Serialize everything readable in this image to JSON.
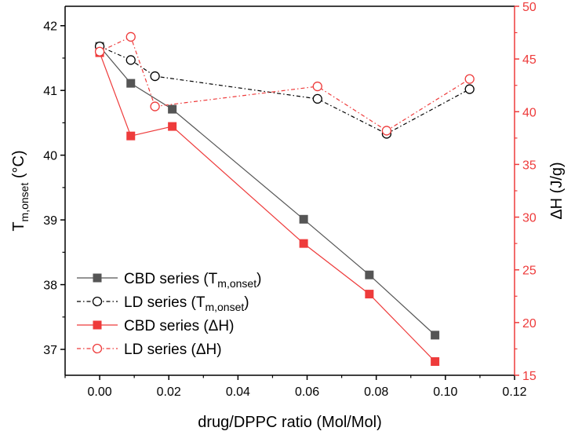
{
  "chart_data": {
    "type": "line",
    "xlabel": "drug/DPPC ratio (Mol/Mol)",
    "ylabel_left": {
      "main": "T",
      "sub": "m,onset",
      "unit": " (°C)"
    },
    "ylabel_right": "ΔH (J/g)",
    "xlim": [
      -0.01,
      0.12
    ],
    "ylim_left": [
      36.6,
      42.3
    ],
    "ylim_right": [
      15,
      50
    ],
    "x_ticks": [
      {
        "v": 0.0,
        "label": "0.00"
      },
      {
        "v": 0.02,
        "label": "0.02"
      },
      {
        "v": 0.04,
        "label": "0.04"
      },
      {
        "v": 0.06,
        "label": "0.06"
      },
      {
        "v": 0.08,
        "label": "0.08"
      },
      {
        "v": 0.1,
        "label": "0.10"
      },
      {
        "v": 0.12,
        "label": "0.12"
      }
    ],
    "y_left_ticks": [
      {
        "v": 37,
        "label": "37"
      },
      {
        "v": 38,
        "label": "38"
      },
      {
        "v": 39,
        "label": "39"
      },
      {
        "v": 40,
        "label": "40"
      },
      {
        "v": 41,
        "label": "41"
      },
      {
        "v": 42,
        "label": "42"
      }
    ],
    "y_right_ticks": [
      {
        "v": 15,
        "label": "15"
      },
      {
        "v": 20,
        "label": "20"
      },
      {
        "v": 25,
        "label": "25"
      },
      {
        "v": 30,
        "label": "30"
      },
      {
        "v": 35,
        "label": "35"
      },
      {
        "v": 40,
        "label": "40"
      },
      {
        "v": 45,
        "label": "45"
      },
      {
        "v": 50,
        "label": "50"
      }
    ],
    "series": [
      {
        "name": "CBD series (Tm,onset)",
        "legend_main": "CBD series (T",
        "legend_sub": "m,onset",
        "legend_end": ")",
        "axis": "left",
        "color": "#555555",
        "marker": "square",
        "dash": "solid",
        "x": [
          0.0,
          0.009,
          0.021,
          0.059,
          0.078,
          0.097
        ],
        "y": [
          41.68,
          41.11,
          40.71,
          39.01,
          38.15,
          37.22
        ]
      },
      {
        "name": "LD series (Tm,onset)",
        "legend_main": "LD series (T",
        "legend_sub": "m,onset",
        "legend_end": ")",
        "axis": "left",
        "color": "#000000",
        "marker": "circle-open",
        "dash": "dashdot",
        "x": [
          0.0,
          0.009,
          0.016,
          0.063,
          0.083,
          0.107
        ],
        "y": [
          41.68,
          41.47,
          41.22,
          40.87,
          40.33,
          41.02
        ]
      },
      {
        "name": "CBD series (ΔH)",
        "legend_main": "CBD series (ΔH)",
        "legend_sub": "",
        "legend_end": "",
        "axis": "right",
        "color": "#ee3b3b",
        "marker": "square",
        "dash": "solid",
        "x": [
          0.0,
          0.009,
          0.021,
          0.059,
          0.078,
          0.097
        ],
        "y": [
          45.6,
          37.7,
          38.6,
          27.5,
          22.7,
          16.3
        ]
      },
      {
        "name": "LD series (ΔH)",
        "legend_main": "LD series (ΔH)",
        "legend_sub": "",
        "legend_end": "",
        "axis": "right",
        "color": "#ee3b3b",
        "marker": "circle-open",
        "dash": "dashdot",
        "x": [
          0.0,
          0.009,
          0.016,
          0.063,
          0.083,
          0.107
        ],
        "y": [
          45.7,
          47.1,
          40.5,
          42.4,
          38.2,
          43.1
        ]
      }
    ],
    "legend_position": "bottom-left",
    "grid": false
  },
  "colors": {
    "left_axis": "#000000",
    "right_axis": "#ee3b3b"
  }
}
